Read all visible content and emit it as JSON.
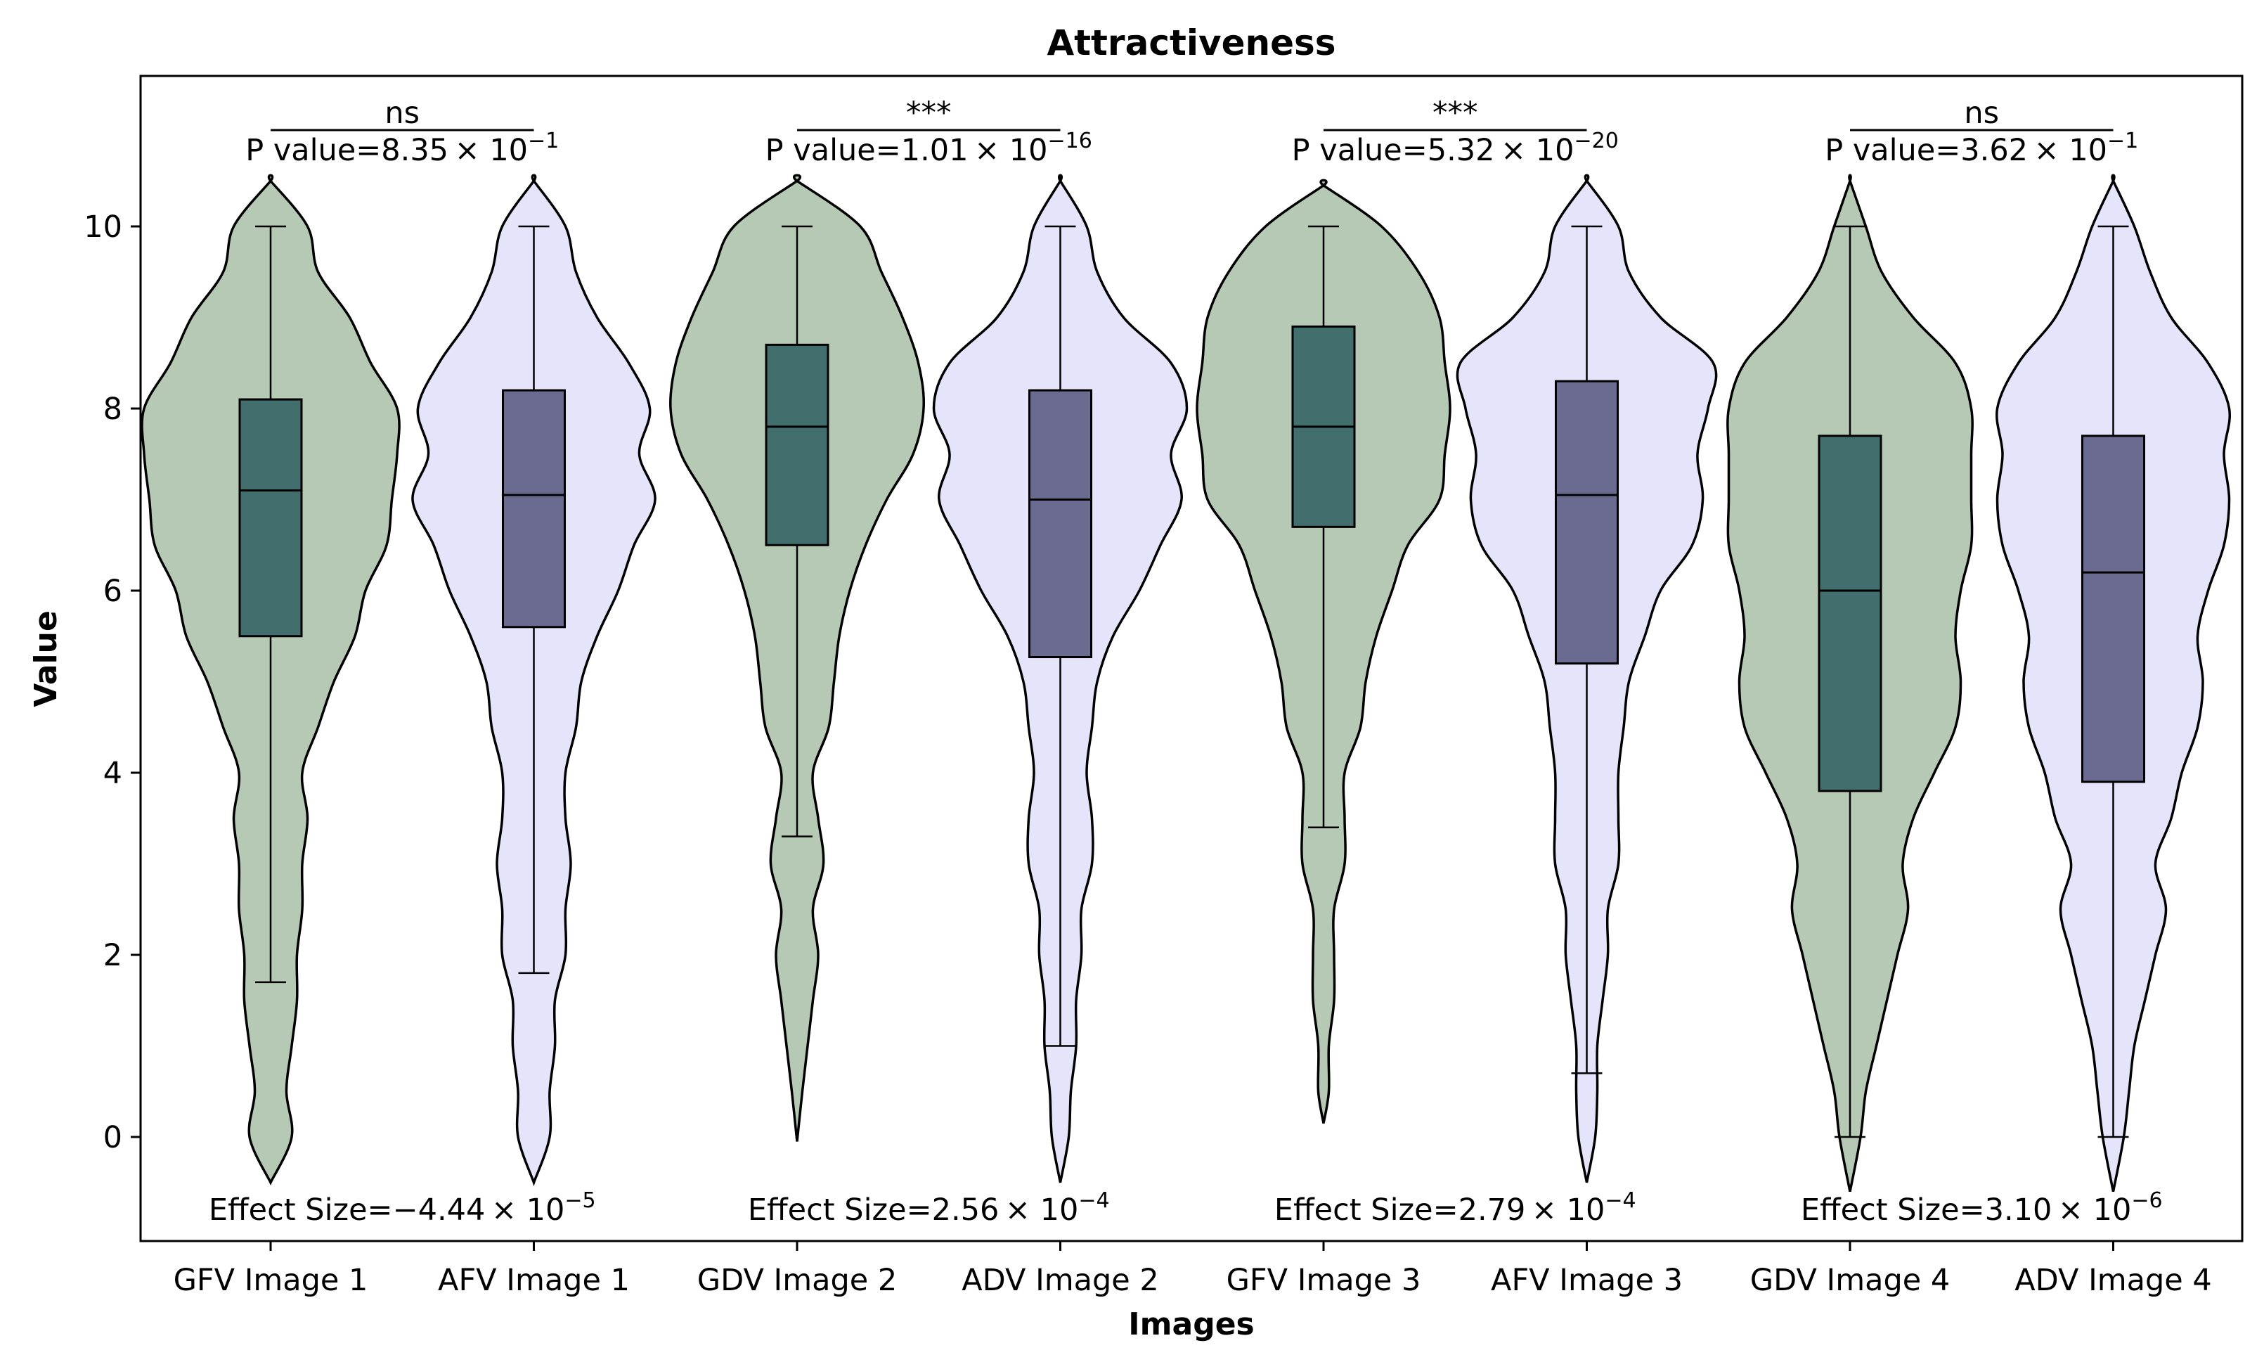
{
  "chart_data": {
    "type": "violin",
    "title": "Attractiveness",
    "xlabel": "Images",
    "ylabel": "Value",
    "ylim": [
      -1.15,
      11.65
    ],
    "yticks": [
      "0",
      "2",
      "4",
      "6",
      "8",
      "10"
    ],
    "grid": false,
    "colors": {
      "G_fill": "#b5c9b5",
      "A_fill": "#e6e4fb",
      "G_box": "#426e6d",
      "A_box": "#6b6b91",
      "stroke": "#000000"
    },
    "categories": [
      "GFV Image 1",
      "AFV Image 1",
      "GDV Image 2",
      "ADV Image 2",
      "GFV Image 3",
      "AFV Image 3",
      "GDV Image 4",
      "ADV Image 4"
    ],
    "series": [
      {
        "group": "G",
        "whisker_low": 1.7,
        "q1": 5.5,
        "median": 7.1,
        "q3": 8.1,
        "whisker_high": 10.0,
        "density": [
          [
            -0.5,
            0.0
          ],
          [
            0.0,
            0.2
          ],
          [
            0.5,
            0.15
          ],
          [
            1.0,
            0.2
          ],
          [
            1.5,
            0.25
          ],
          [
            2.0,
            0.25
          ],
          [
            2.5,
            0.3
          ],
          [
            3.0,
            0.3
          ],
          [
            3.5,
            0.35
          ],
          [
            4.0,
            0.3
          ],
          [
            4.5,
            0.45
          ],
          [
            5.0,
            0.6
          ],
          [
            5.5,
            0.8
          ],
          [
            6.0,
            0.9
          ],
          [
            6.5,
            1.1
          ],
          [
            7.0,
            1.15
          ],
          [
            7.5,
            1.2
          ],
          [
            8.0,
            1.2
          ],
          [
            8.5,
            0.95
          ],
          [
            9.0,
            0.75
          ],
          [
            9.5,
            0.45
          ],
          [
            10.0,
            0.35
          ],
          [
            10.5,
            0.0
          ]
        ]
      },
      {
        "group": "A",
        "whisker_low": 1.8,
        "q1": 5.6,
        "median": 7.05,
        "q3": 8.2,
        "whisker_high": 10.0,
        "density": [
          [
            -0.5,
            0.0
          ],
          [
            0.0,
            0.15
          ],
          [
            0.5,
            0.15
          ],
          [
            1.0,
            0.2
          ],
          [
            1.5,
            0.2
          ],
          [
            2.0,
            0.3
          ],
          [
            2.5,
            0.3
          ],
          [
            3.0,
            0.35
          ],
          [
            3.5,
            0.3
          ],
          [
            4.0,
            0.3
          ],
          [
            4.5,
            0.4
          ],
          [
            5.0,
            0.45
          ],
          [
            5.5,
            0.6
          ],
          [
            6.0,
            0.8
          ],
          [
            6.5,
            0.95
          ],
          [
            7.0,
            1.15
          ],
          [
            7.5,
            1.0
          ],
          [
            8.0,
            1.1
          ],
          [
            8.5,
            0.9
          ],
          [
            9.0,
            0.6
          ],
          [
            9.5,
            0.4
          ],
          [
            10.0,
            0.3
          ],
          [
            10.5,
            0.0
          ]
        ]
      },
      {
        "group": "G",
        "whisker_low": 3.3,
        "q1": 6.5,
        "median": 7.8,
        "q3": 8.7,
        "whisker_high": 10.0,
        "density": [
          [
            -0.05,
            0.0
          ],
          [
            0.5,
            0.05
          ],
          [
            1.0,
            0.1
          ],
          [
            1.5,
            0.15
          ],
          [
            2.0,
            0.2
          ],
          [
            2.5,
            0.15
          ],
          [
            3.0,
            0.25
          ],
          [
            3.5,
            0.2
          ],
          [
            4.0,
            0.15
          ],
          [
            4.5,
            0.3
          ],
          [
            5.0,
            0.35
          ],
          [
            5.5,
            0.4
          ],
          [
            6.0,
            0.5
          ],
          [
            6.5,
            0.65
          ],
          [
            7.0,
            0.85
          ],
          [
            7.5,
            1.1
          ],
          [
            8.0,
            1.2
          ],
          [
            8.5,
            1.15
          ],
          [
            9.0,
            1.0
          ],
          [
            9.5,
            0.8
          ],
          [
            10.0,
            0.6
          ],
          [
            10.5,
            0.0
          ]
        ]
      },
      {
        "group": "A",
        "whisker_low": 1.0,
        "q1": 5.27,
        "median": 7.0,
        "q3": 8.2,
        "whisker_high": 10.0,
        "density": [
          [
            -0.5,
            0.0
          ],
          [
            0.0,
            0.08
          ],
          [
            0.5,
            0.1
          ],
          [
            1.0,
            0.15
          ],
          [
            1.5,
            0.15
          ],
          [
            2.0,
            0.2
          ],
          [
            2.5,
            0.2
          ],
          [
            3.0,
            0.3
          ],
          [
            3.5,
            0.3
          ],
          [
            4.0,
            0.25
          ],
          [
            4.5,
            0.3
          ],
          [
            5.0,
            0.35
          ],
          [
            5.5,
            0.5
          ],
          [
            6.0,
            0.75
          ],
          [
            6.5,
            0.95
          ],
          [
            7.0,
            1.15
          ],
          [
            7.5,
            1.05
          ],
          [
            8.0,
            1.2
          ],
          [
            8.5,
            1.05
          ],
          [
            9.0,
            0.6
          ],
          [
            9.5,
            0.35
          ],
          [
            10.0,
            0.25
          ],
          [
            10.5,
            0.0
          ]
        ]
      },
      {
        "group": "G",
        "whisker_low": 3.4,
        "q1": 6.7,
        "median": 7.8,
        "q3": 8.9,
        "whisker_high": 10.0,
        "density": [
          [
            0.15,
            0.0
          ],
          [
            0.5,
            0.05
          ],
          [
            1.0,
            0.05
          ],
          [
            1.5,
            0.1
          ],
          [
            2.0,
            0.1
          ],
          [
            2.5,
            0.1
          ],
          [
            3.0,
            0.2
          ],
          [
            3.5,
            0.2
          ],
          [
            4.0,
            0.2
          ],
          [
            4.5,
            0.35
          ],
          [
            5.0,
            0.4
          ],
          [
            5.5,
            0.5
          ],
          [
            6.0,
            0.65
          ],
          [
            6.5,
            0.8
          ],
          [
            7.0,
            1.1
          ],
          [
            7.5,
            1.15
          ],
          [
            8.0,
            1.2
          ],
          [
            8.5,
            1.15
          ],
          [
            9.0,
            1.1
          ],
          [
            9.5,
            0.9
          ],
          [
            10.0,
            0.55
          ],
          [
            10.45,
            0.0
          ]
        ]
      },
      {
        "group": "A",
        "whisker_low": 0.7,
        "q1": 5.2,
        "median": 7.05,
        "q3": 8.3,
        "whisker_high": 10.0,
        "density": [
          [
            -0.5,
            0.0
          ],
          [
            0.0,
            0.08
          ],
          [
            0.5,
            0.1
          ],
          [
            1.0,
            0.1
          ],
          [
            1.5,
            0.15
          ],
          [
            2.0,
            0.2
          ],
          [
            2.5,
            0.2
          ],
          [
            3.0,
            0.3
          ],
          [
            3.5,
            0.3
          ],
          [
            4.0,
            0.3
          ],
          [
            4.5,
            0.35
          ],
          [
            5.0,
            0.4
          ],
          [
            5.5,
            0.55
          ],
          [
            6.0,
            0.7
          ],
          [
            6.5,
            1.0
          ],
          [
            7.0,
            1.1
          ],
          [
            7.5,
            1.05
          ],
          [
            8.0,
            1.15
          ],
          [
            8.5,
            1.2
          ],
          [
            9.0,
            0.7
          ],
          [
            9.5,
            0.4
          ],
          [
            10.0,
            0.3
          ],
          [
            10.5,
            0.0
          ]
        ]
      },
      {
        "group": "G",
        "whisker_low": 0.0,
        "q1": 3.8,
        "median": 6.0,
        "q3": 7.7,
        "whisker_high": 10.0,
        "density": [
          [
            -0.6,
            0.0
          ],
          [
            0.0,
            0.1
          ],
          [
            0.5,
            0.15
          ],
          [
            1.0,
            0.25
          ],
          [
            1.5,
            0.35
          ],
          [
            2.0,
            0.45
          ],
          [
            2.5,
            0.55
          ],
          [
            3.0,
            0.5
          ],
          [
            3.5,
            0.6
          ],
          [
            4.0,
            0.8
          ],
          [
            4.5,
            1.0
          ],
          [
            5.0,
            1.05
          ],
          [
            5.5,
            1.0
          ],
          [
            6.0,
            1.05
          ],
          [
            6.5,
            1.15
          ],
          [
            7.0,
            1.15
          ],
          [
            7.5,
            1.15
          ],
          [
            8.0,
            1.15
          ],
          [
            8.5,
            1.0
          ],
          [
            9.0,
            0.6
          ],
          [
            9.5,
            0.3
          ],
          [
            10.0,
            0.15
          ],
          [
            10.5,
            0.0
          ]
        ]
      },
      {
        "group": "A",
        "whisker_low": 0.0,
        "q1": 3.9,
        "median": 6.2,
        "q3": 7.7,
        "whisker_high": 10.0,
        "density": [
          [
            -0.6,
            0.0
          ],
          [
            0.0,
            0.1
          ],
          [
            0.5,
            0.15
          ],
          [
            1.0,
            0.2
          ],
          [
            1.5,
            0.3
          ],
          [
            2.0,
            0.4
          ],
          [
            2.5,
            0.5
          ],
          [
            3.0,
            0.4
          ],
          [
            3.5,
            0.55
          ],
          [
            4.0,
            0.65
          ],
          [
            4.5,
            0.8
          ],
          [
            5.0,
            0.85
          ],
          [
            5.5,
            0.8
          ],
          [
            6.0,
            0.9
          ],
          [
            6.5,
            1.05
          ],
          [
            7.0,
            1.1
          ],
          [
            7.5,
            1.05
          ],
          [
            8.0,
            1.1
          ],
          [
            8.5,
            0.9
          ],
          [
            9.0,
            0.55
          ],
          [
            9.5,
            0.35
          ],
          [
            10.0,
            0.2
          ],
          [
            10.5,
            0.0
          ]
        ]
      }
    ],
    "comparisons": [
      {
        "pair": [
          0,
          1
        ],
        "significance": "ns",
        "p_text": "P value=8.35",
        "p_exp": "−1",
        "effect_text": "Effect Size=−4.44",
        "effect_exp": "−5"
      },
      {
        "pair": [
          2,
          3
        ],
        "significance": "***",
        "p_text": "P value=1.01",
        "p_exp": "−16",
        "effect_text": "Effect Size=2.56",
        "effect_exp": "−4"
      },
      {
        "pair": [
          4,
          5
        ],
        "significance": "***",
        "p_text": "P value=5.32",
        "p_exp": "−20",
        "effect_text": "Effect Size=2.79",
        "effect_exp": "−4"
      },
      {
        "pair": [
          6,
          7
        ],
        "significance": "ns",
        "p_text": "P value=3.62",
        "p_exp": "−1",
        "effect_text": "Effect Size=3.10",
        "effect_exp": "−6"
      }
    ],
    "times_text": "× 10"
  }
}
